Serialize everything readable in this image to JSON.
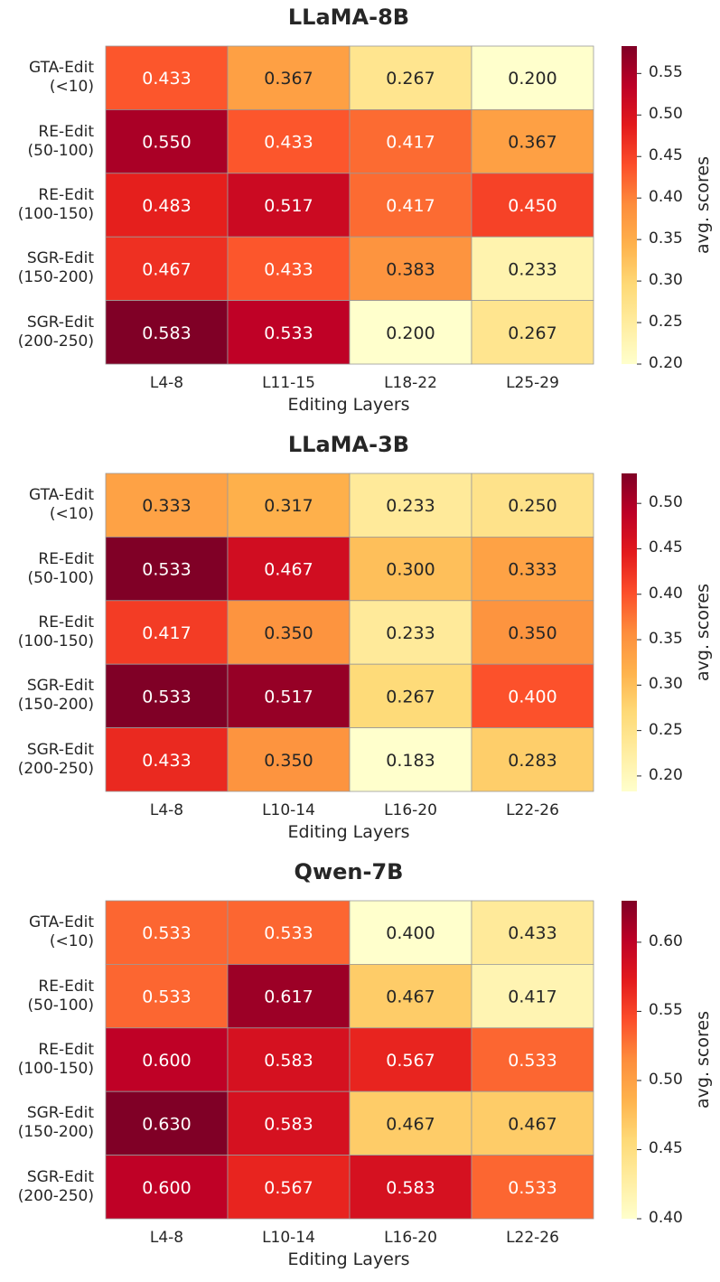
{
  "chart_data": [
    {
      "type": "heatmap",
      "title": "LLaMA-8B",
      "xlabel": "Editing Layers",
      "colorbar_label": "avg. scores",
      "rows": [
        [
          "GTA-Edit",
          "(<10)"
        ],
        [
          "RE-Edit",
          "(50-100)"
        ],
        [
          "RE-Edit",
          "(100-150)"
        ],
        [
          "SGR-Edit",
          "(150-200)"
        ],
        [
          "SGR-Edit",
          "(200-250)"
        ]
      ],
      "columns": [
        "L4-8",
        "L11-15",
        "L18-22",
        "L25-29"
      ],
      "values": [
        [
          "0.433",
          "0.367",
          "0.267",
          "0.200"
        ],
        [
          "0.550",
          "0.433",
          "0.417",
          "0.367"
        ],
        [
          "0.483",
          "0.517",
          "0.417",
          "0.450"
        ],
        [
          "0.467",
          "0.433",
          "0.383",
          "0.233"
        ],
        [
          "0.583",
          "0.533",
          "0.200",
          "0.267"
        ]
      ],
      "colorbar_range": [
        0.2,
        0.583
      ],
      "colorbar_ticks": [
        "0.55",
        "0.50",
        "0.45",
        "0.40",
        "0.35",
        "0.30",
        "0.25",
        "0.20"
      ],
      "colormap": "YlOrRd"
    },
    {
      "type": "heatmap",
      "title": "LLaMA-3B",
      "xlabel": "Editing Layers",
      "colorbar_label": "avg. scores",
      "rows": [
        [
          "GTA-Edit",
          "(<10)"
        ],
        [
          "RE-Edit",
          "(50-100)"
        ],
        [
          "RE-Edit",
          "(100-150)"
        ],
        [
          "SGR-Edit",
          "(150-200)"
        ],
        [
          "SGR-Edit",
          "(200-250)"
        ]
      ],
      "columns": [
        "L4-8",
        "L10-14",
        "L16-20",
        "L22-26"
      ],
      "values": [
        [
          "0.333",
          "0.317",
          "0.233",
          "0.250"
        ],
        [
          "0.533",
          "0.467",
          "0.300",
          "0.333"
        ],
        [
          "0.417",
          "0.350",
          "0.233",
          "0.350"
        ],
        [
          "0.533",
          "0.517",
          "0.267",
          "0.400"
        ],
        [
          "0.433",
          "0.350",
          "0.183",
          "0.283"
        ]
      ],
      "colorbar_range": [
        0.183,
        0.533
      ],
      "colorbar_ticks": [
        "0.50",
        "0.45",
        "0.40",
        "0.35",
        "0.30",
        "0.25",
        "0.20"
      ],
      "colormap": "YlOrRd"
    },
    {
      "type": "heatmap",
      "title": "Qwen-7B",
      "xlabel": "Editing Layers",
      "colorbar_label": "avg. scores",
      "rows": [
        [
          "GTA-Edit",
          "(<10)"
        ],
        [
          "RE-Edit",
          "(50-100)"
        ],
        [
          "RE-Edit",
          "(100-150)"
        ],
        [
          "SGR-Edit",
          "(150-200)"
        ],
        [
          "SGR-Edit",
          "(200-250)"
        ]
      ],
      "columns": [
        "L4-8",
        "L10-14",
        "L16-20",
        "L22-26"
      ],
      "values": [
        [
          "0.533",
          "0.533",
          "0.400",
          "0.433"
        ],
        [
          "0.533",
          "0.617",
          "0.467",
          "0.417"
        ],
        [
          "0.600",
          "0.583",
          "0.567",
          "0.533"
        ],
        [
          "0.630",
          "0.583",
          "0.467",
          "0.467"
        ],
        [
          "0.600",
          "0.567",
          "0.583",
          "0.533"
        ]
      ],
      "colorbar_range": [
        0.4,
        0.63
      ],
      "colorbar_ticks": [
        "0.60",
        "0.55",
        "0.50",
        "0.45",
        "0.40"
      ],
      "colormap": "YlOrRd"
    }
  ]
}
